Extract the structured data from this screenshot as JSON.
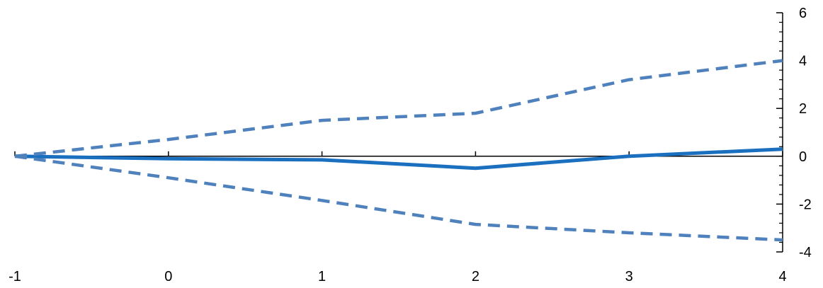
{
  "chart_data": {
    "type": "line",
    "x": [
      -1,
      0,
      1,
      2,
      3,
      4
    ],
    "series": [
      {
        "values": [
          0,
          -0.1,
          -0.15,
          -0.5,
          0,
          0.3
        ],
        "style": "solid",
        "color": "#1a6fbf"
      },
      {
        "values": [
          0,
          0.7,
          1.5,
          1.8,
          3.2,
          4.0
        ],
        "style": "dashed",
        "color": "#4f81bd"
      },
      {
        "values": [
          0,
          -0.9,
          -1.85,
          -2.85,
          -3.2,
          -3.5
        ],
        "style": "dashed",
        "color": "#4f81bd"
      }
    ],
    "xlim": [
      -1,
      4
    ],
    "ylim": [
      -4,
      6
    ],
    "x_ticks": [
      -1,
      0,
      1,
      2,
      3,
      4
    ],
    "y_ticks": [
      -4,
      -2,
      0,
      2,
      4,
      6
    ],
    "y_axis_side": "right",
    "x_axis_at": 0,
    "grid": false,
    "legend": "none",
    "axis_color": "#000000"
  }
}
